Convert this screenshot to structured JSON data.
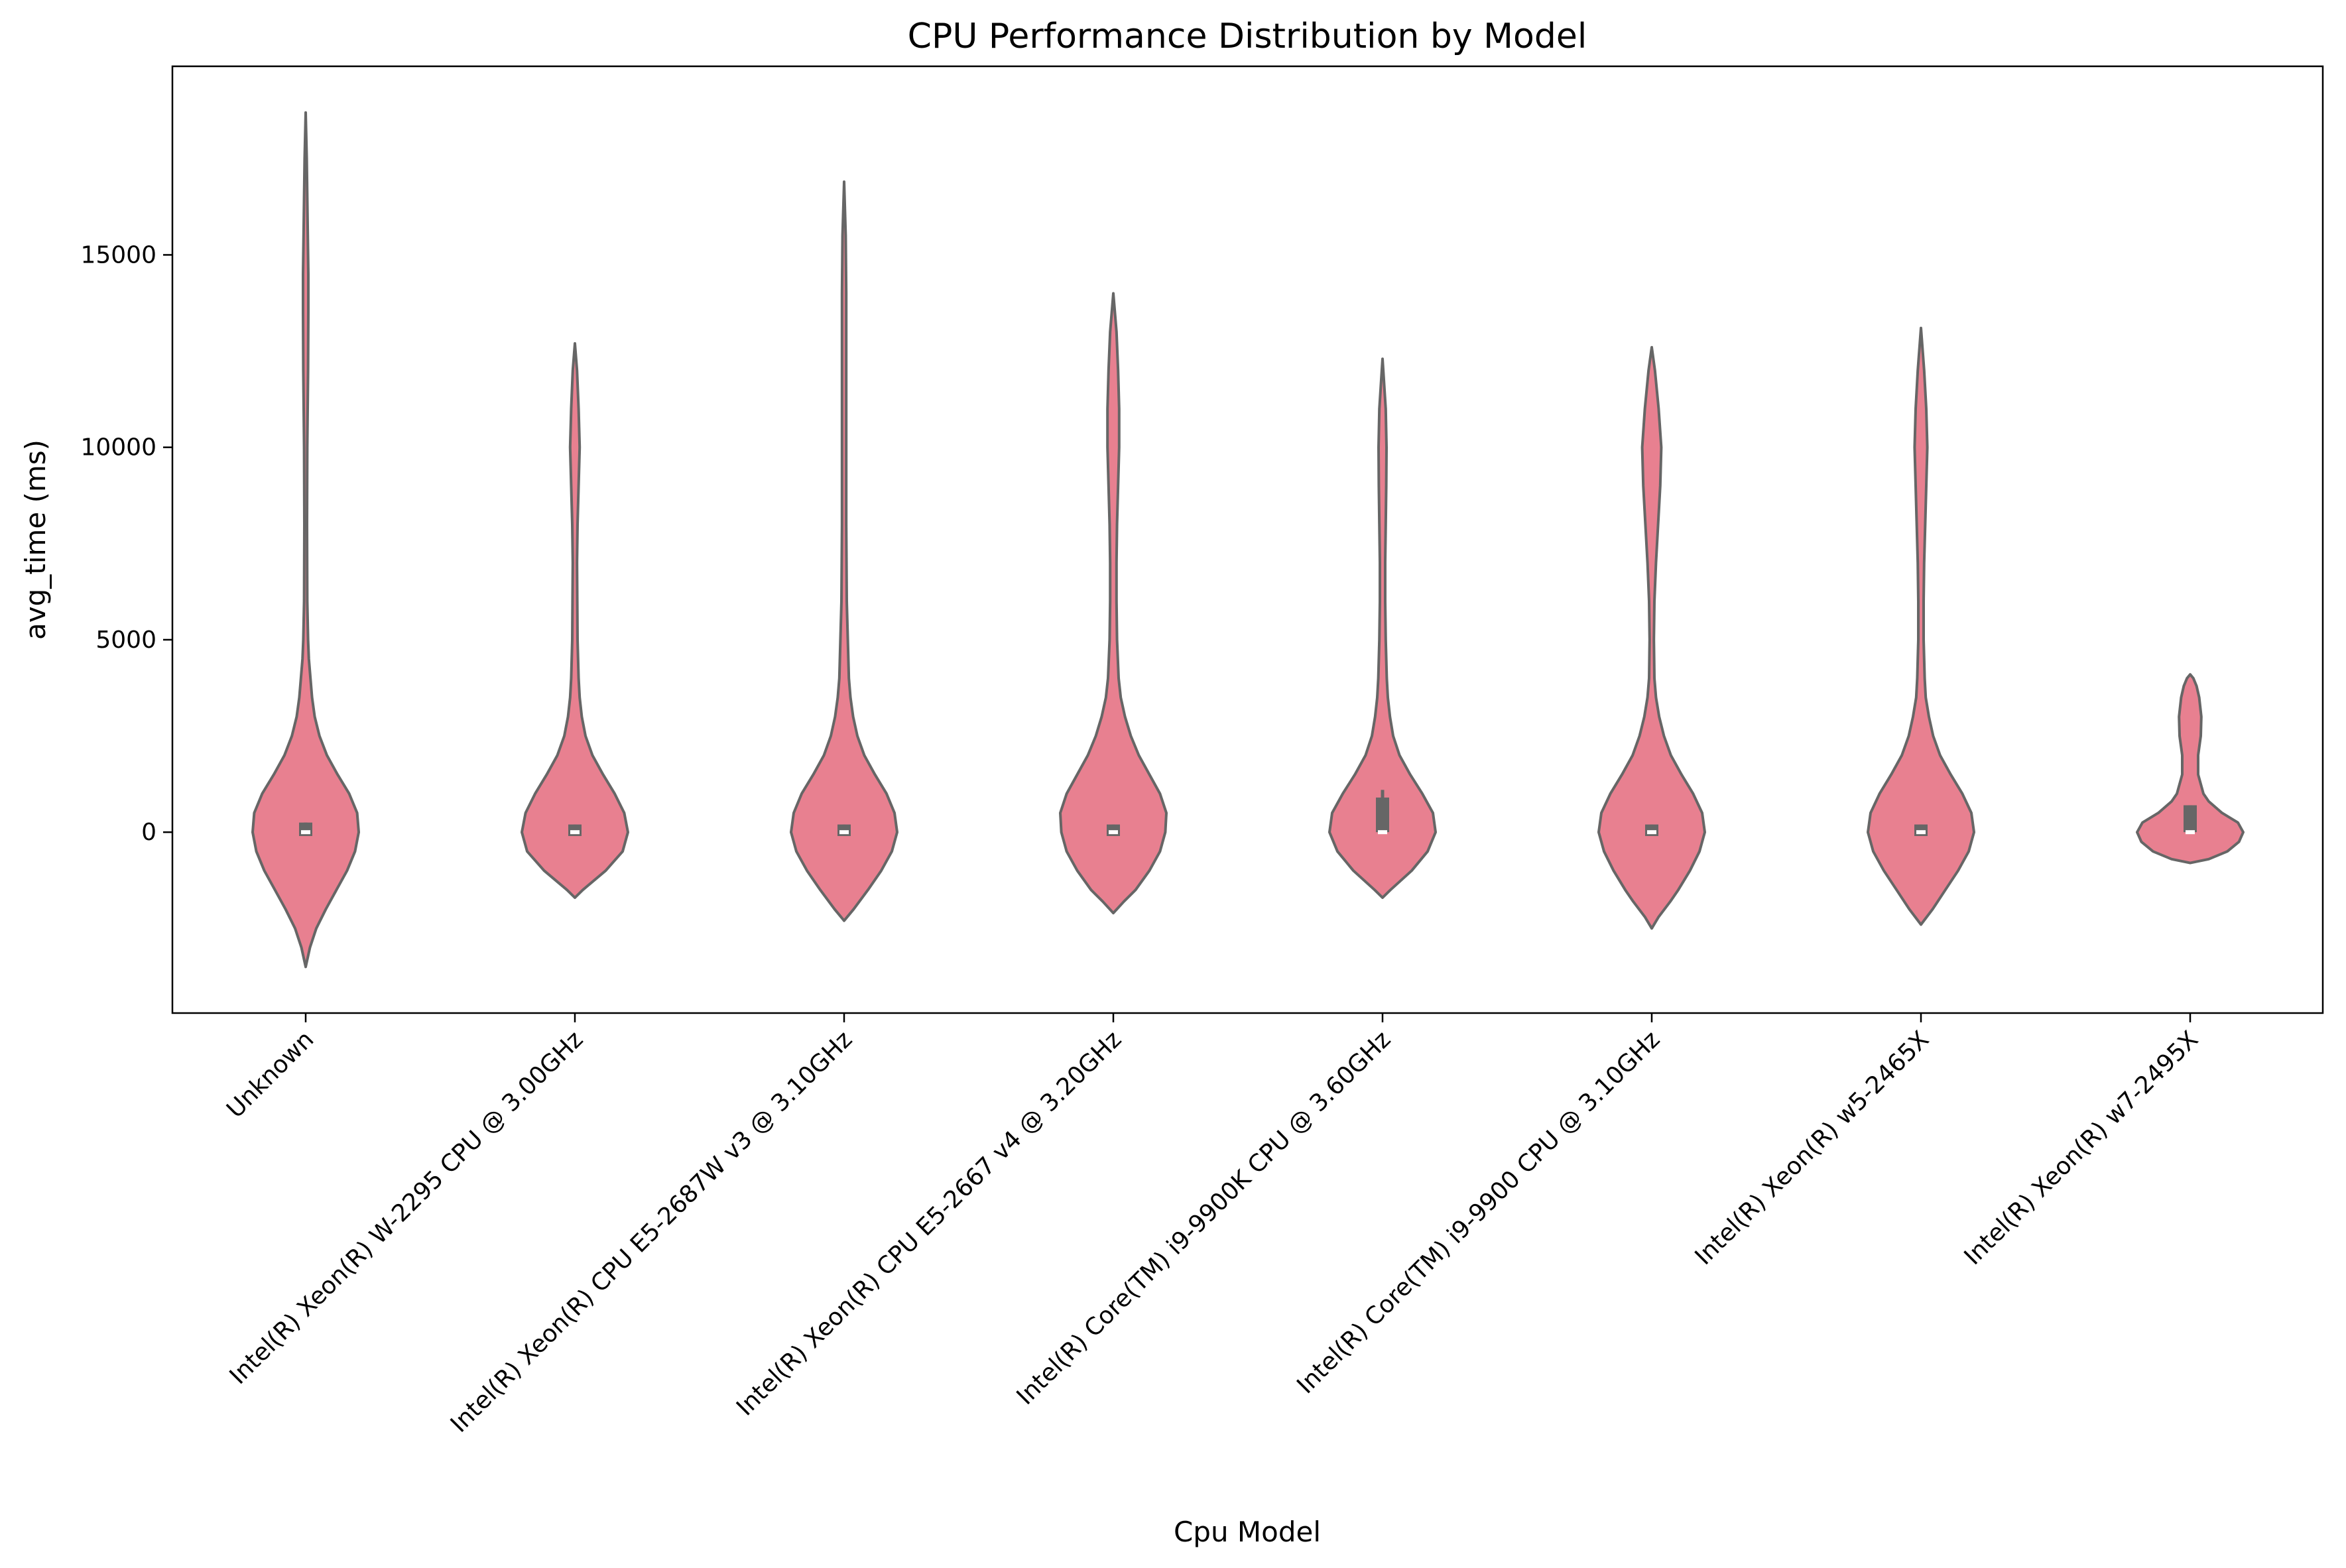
{
  "chart_data": {
    "type": "violin",
    "title": "CPU Performance Distribution by Model",
    "xlabel": "Cpu Model",
    "ylabel": "avg_time (ms)",
    "ylim": [
      -4700,
      19900
    ],
    "yticks": [
      0,
      5000,
      10000,
      15000
    ],
    "grid": false,
    "color": "#e88090",
    "edge_color": "#666666",
    "categories": [
      "Unknown",
      "Intel(R) Xeon(R) W-2295 CPU @ 3.00GHz",
      "Intel(R) Xeon(R) CPU E5-2687W v3 @ 3.10GHz",
      "Intel(R) Xeon(R) CPU E5-2667 v4 @ 3.20GHz",
      "Intel(R) Core(TM) i9-9900K CPU @ 3.60GHz",
      "Intel(R) Core(TM) i9-9900 CPU @ 3.10GHz",
      "Intel(R) Xeon(R) w5-2465X",
      "Intel(R) Xeon(R) w7-2495X"
    ],
    "violins": [
      {
        "min": -3500,
        "max": 18700,
        "median": 0,
        "q1": -100,
        "q3": 250,
        "whisker_low": -100,
        "whisker_high": 250,
        "profile": [
          [
            -3500,
            0.0
          ],
          [
            -3000,
            0.08
          ],
          [
            -2500,
            0.2
          ],
          [
            -2000,
            0.38
          ],
          [
            -1500,
            0.58
          ],
          [
            -1000,
            0.78
          ],
          [
            -500,
            0.93
          ],
          [
            0,
            1.0
          ],
          [
            500,
            0.97
          ],
          [
            1000,
            0.82
          ],
          [
            1500,
            0.6
          ],
          [
            2000,
            0.4
          ],
          [
            2500,
            0.26
          ],
          [
            3000,
            0.17
          ],
          [
            3500,
            0.12
          ],
          [
            4000,
            0.09
          ],
          [
            4500,
            0.06
          ],
          [
            5000,
            0.045
          ],
          [
            6000,
            0.03
          ],
          [
            8000,
            0.025
          ],
          [
            10000,
            0.03
          ],
          [
            12000,
            0.045
          ],
          [
            13500,
            0.05
          ],
          [
            14500,
            0.05
          ],
          [
            15500,
            0.04
          ],
          [
            16500,
            0.03
          ],
          [
            17500,
            0.02
          ],
          [
            18700,
            0.0
          ]
        ]
      },
      {
        "min": -1700,
        "max": 12700,
        "median": 0,
        "q1": -100,
        "q3": 200,
        "whisker_low": -100,
        "whisker_high": 200,
        "profile": [
          [
            -1700,
            0.0
          ],
          [
            -1500,
            0.15
          ],
          [
            -1000,
            0.58
          ],
          [
            -500,
            0.9
          ],
          [
            0,
            1.0
          ],
          [
            500,
            0.93
          ],
          [
            1000,
            0.75
          ],
          [
            1500,
            0.53
          ],
          [
            2000,
            0.33
          ],
          [
            2500,
            0.2
          ],
          [
            3000,
            0.13
          ],
          [
            3500,
            0.09
          ],
          [
            4000,
            0.07
          ],
          [
            5000,
            0.05
          ],
          [
            6000,
            0.045
          ],
          [
            7000,
            0.04
          ],
          [
            8000,
            0.05
          ],
          [
            9000,
            0.07
          ],
          [
            9500,
            0.08
          ],
          [
            10000,
            0.09
          ],
          [
            10500,
            0.08
          ],
          [
            11000,
            0.07
          ],
          [
            12000,
            0.04
          ],
          [
            12700,
            0.0
          ]
        ]
      },
      {
        "min": -2300,
        "max": 16900,
        "median": 0,
        "q1": -100,
        "q3": 200,
        "whisker_low": -100,
        "whisker_high": 200,
        "profile": [
          [
            -2300,
            0.0
          ],
          [
            -2000,
            0.18
          ],
          [
            -1500,
            0.45
          ],
          [
            -1000,
            0.7
          ],
          [
            -500,
            0.9
          ],
          [
            0,
            1.0
          ],
          [
            500,
            0.95
          ],
          [
            1000,
            0.8
          ],
          [
            1500,
            0.58
          ],
          [
            2000,
            0.38
          ],
          [
            2500,
            0.25
          ],
          [
            3000,
            0.17
          ],
          [
            3500,
            0.12
          ],
          [
            4000,
            0.09
          ],
          [
            5000,
            0.07
          ],
          [
            6000,
            0.05
          ],
          [
            8000,
            0.04
          ],
          [
            10000,
            0.04
          ],
          [
            12000,
            0.04
          ],
          [
            14000,
            0.04
          ],
          [
            15500,
            0.03
          ],
          [
            16900,
            0.0
          ]
        ]
      },
      {
        "min": -2100,
        "max": 14000,
        "median": 0,
        "q1": -100,
        "q3": 200,
        "whisker_low": -100,
        "whisker_high": 200,
        "profile": [
          [
            -2100,
            0.0
          ],
          [
            -1800,
            0.2
          ],
          [
            -1500,
            0.42
          ],
          [
            -1000,
            0.68
          ],
          [
            -500,
            0.88
          ],
          [
            0,
            0.98
          ],
          [
            500,
            1.0
          ],
          [
            1000,
            0.88
          ],
          [
            1500,
            0.68
          ],
          [
            2000,
            0.48
          ],
          [
            2500,
            0.33
          ],
          [
            3000,
            0.22
          ],
          [
            3500,
            0.14
          ],
          [
            4000,
            0.1
          ],
          [
            5000,
            0.07
          ],
          [
            6000,
            0.06
          ],
          [
            7000,
            0.06
          ],
          [
            8000,
            0.07
          ],
          [
            9000,
            0.09
          ],
          [
            10000,
            0.11
          ],
          [
            11000,
            0.11
          ],
          [
            12000,
            0.09
          ],
          [
            13000,
            0.06
          ],
          [
            14000,
            0.0
          ]
        ]
      },
      {
        "min": -1700,
        "max": 12300,
        "median": 0,
        "q1": 0,
        "q3": 900,
        "whisker_low": 0,
        "whisker_high": 1100,
        "profile": [
          [
            -1700,
            0.0
          ],
          [
            -1500,
            0.15
          ],
          [
            -1000,
            0.55
          ],
          [
            -500,
            0.85
          ],
          [
            0,
            1.0
          ],
          [
            500,
            0.95
          ],
          [
            1000,
            0.75
          ],
          [
            1500,
            0.52
          ],
          [
            2000,
            0.32
          ],
          [
            2500,
            0.2
          ],
          [
            3000,
            0.14
          ],
          [
            3500,
            0.1
          ],
          [
            4000,
            0.08
          ],
          [
            5000,
            0.06
          ],
          [
            6000,
            0.05
          ],
          [
            7000,
            0.05
          ],
          [
            8000,
            0.06
          ],
          [
            9000,
            0.07
          ],
          [
            10000,
            0.075
          ],
          [
            11000,
            0.06
          ],
          [
            12300,
            0.0
          ]
        ]
      },
      {
        "min": -2500,
        "max": 12600,
        "median": 0,
        "q1": -100,
        "q3": 200,
        "whisker_low": -100,
        "whisker_high": 200,
        "profile": [
          [
            -2500,
            0.0
          ],
          [
            -2200,
            0.13
          ],
          [
            -1800,
            0.35
          ],
          [
            -1500,
            0.5
          ],
          [
            -1000,
            0.72
          ],
          [
            -500,
            0.9
          ],
          [
            0,
            1.0
          ],
          [
            500,
            0.95
          ],
          [
            1000,
            0.78
          ],
          [
            1500,
            0.56
          ],
          [
            2000,
            0.36
          ],
          [
            2500,
            0.23
          ],
          [
            3000,
            0.14
          ],
          [
            3500,
            0.08
          ],
          [
            4000,
            0.05
          ],
          [
            5000,
            0.04
          ],
          [
            6000,
            0.05
          ],
          [
            7000,
            0.08
          ],
          [
            8000,
            0.12
          ],
          [
            9000,
            0.16
          ],
          [
            10000,
            0.18
          ],
          [
            11000,
            0.13
          ],
          [
            12000,
            0.06
          ],
          [
            12600,
            0.0
          ]
        ]
      },
      {
        "min": -2400,
        "max": 13100,
        "median": 0,
        "q1": -100,
        "q3": 200,
        "whisker_low": -100,
        "whisker_high": 200,
        "profile": [
          [
            -2400,
            0.0
          ],
          [
            -2000,
            0.22
          ],
          [
            -1500,
            0.46
          ],
          [
            -1000,
            0.7
          ],
          [
            -500,
            0.9
          ],
          [
            0,
            1.0
          ],
          [
            500,
            0.95
          ],
          [
            1000,
            0.78
          ],
          [
            1500,
            0.56
          ],
          [
            2000,
            0.36
          ],
          [
            2500,
            0.23
          ],
          [
            3000,
            0.15
          ],
          [
            3500,
            0.09
          ],
          [
            4000,
            0.07
          ],
          [
            5000,
            0.05
          ],
          [
            6000,
            0.05
          ],
          [
            7000,
            0.06
          ],
          [
            8000,
            0.08
          ],
          [
            9000,
            0.1
          ],
          [
            10000,
            0.12
          ],
          [
            11000,
            0.1
          ],
          [
            12000,
            0.06
          ],
          [
            13100,
            0.0
          ]
        ]
      },
      {
        "min": -800,
        "max": 4100,
        "median": 0,
        "q1": 0,
        "q3": 700,
        "whisker_low": 0,
        "whisker_high": 700,
        "profile": [
          [
            -800,
            0.0
          ],
          [
            -700,
            0.35
          ],
          [
            -500,
            0.7
          ],
          [
            -250,
            0.92
          ],
          [
            0,
            1.0
          ],
          [
            250,
            0.9
          ],
          [
            500,
            0.6
          ],
          [
            800,
            0.35
          ],
          [
            1000,
            0.25
          ],
          [
            1500,
            0.15
          ],
          [
            2000,
            0.15
          ],
          [
            2500,
            0.2
          ],
          [
            3000,
            0.21
          ],
          [
            3500,
            0.17
          ],
          [
            3800,
            0.12
          ],
          [
            4000,
            0.06
          ],
          [
            4100,
            0.0
          ]
        ]
      }
    ]
  }
}
